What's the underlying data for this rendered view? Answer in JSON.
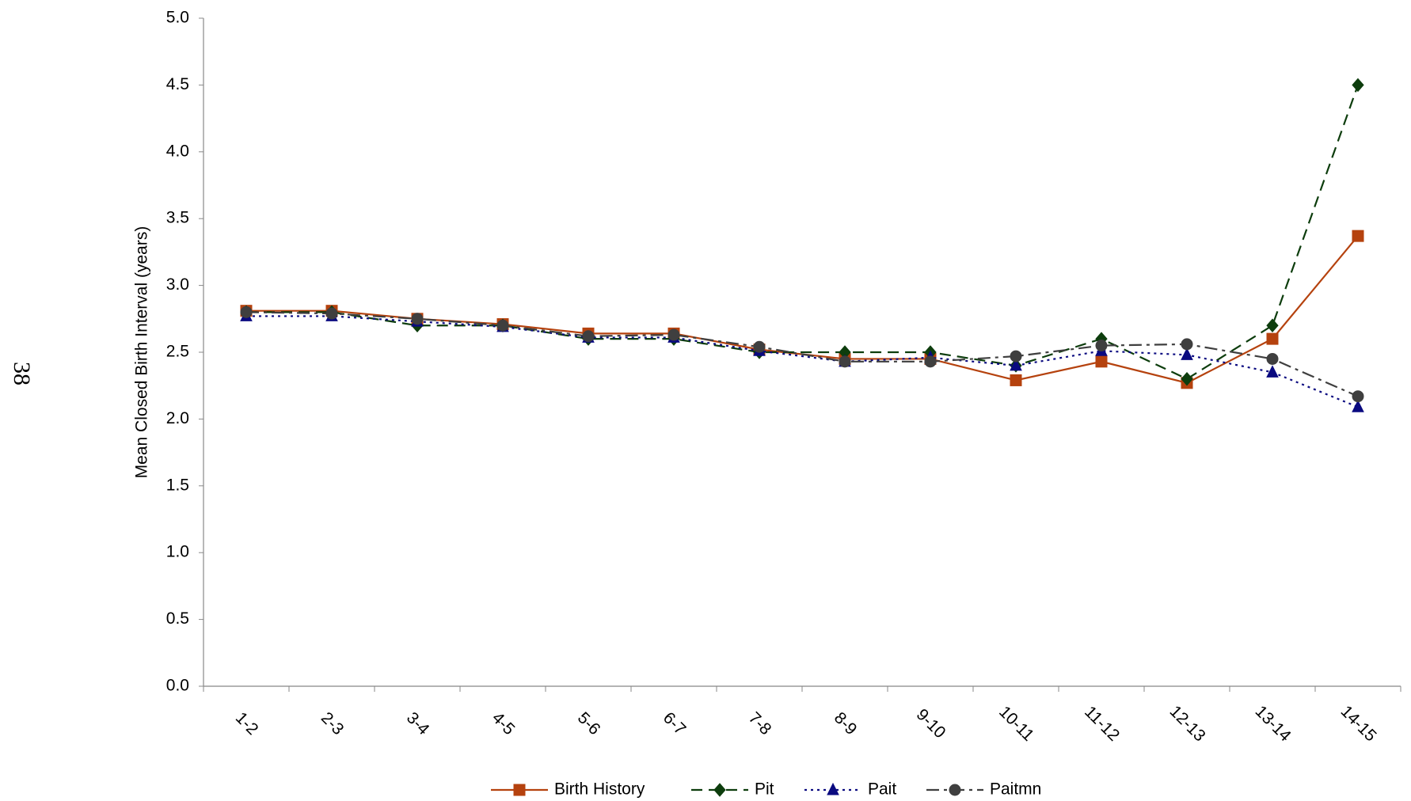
{
  "page_number": "38",
  "chart_data": {
    "type": "line",
    "y_label": "Mean Closed Birth Interval (years)",
    "categories": [
      "1-2",
      "2-3",
      "3-4",
      "4-5",
      "5-6",
      "6-7",
      "7-8",
      "8-9",
      "9-10",
      "10-11",
      "11-12",
      "12-13",
      "13-14",
      "14-15"
    ],
    "series": [
      {
        "name": "Birth History",
        "color": "#b5420e",
        "marker": "square",
        "line_style": "solid",
        "values": [
          2.81,
          2.81,
          2.75,
          2.71,
          2.64,
          2.64,
          2.52,
          2.45,
          2.45,
          2.29,
          2.43,
          2.27,
          2.6,
          3.37
        ]
      },
      {
        "name": "Pit",
        "color": "#0d3d0d",
        "marker": "diamond",
        "line_style": "dashed",
        "values": [
          2.8,
          2.8,
          2.7,
          2.7,
          2.6,
          2.6,
          2.5,
          2.5,
          2.5,
          2.4,
          2.6,
          2.3,
          2.7,
          4.5
        ]
      },
      {
        "name": "Pait",
        "color": "#0a0a80",
        "marker": "triangle",
        "line_style": "dotted",
        "values": [
          2.77,
          2.77,
          2.73,
          2.69,
          2.61,
          2.61,
          2.51,
          2.43,
          2.46,
          2.4,
          2.51,
          2.48,
          2.35,
          2.09
        ]
      },
      {
        "name": "Paitmn",
        "color": "#3f3f3f",
        "marker": "circle",
        "line_style": "dashdot",
        "values": [
          2.8,
          2.79,
          2.75,
          2.7,
          2.62,
          2.63,
          2.54,
          2.43,
          2.43,
          2.47,
          2.55,
          2.56,
          2.45,
          2.17
        ]
      }
    ],
    "ylim": [
      0,
      5
    ],
    "yticks": [
      {
        "value": 0,
        "label": "0.0"
      },
      0.5,
      {
        "value": 1,
        "label": "1.0"
      },
      1.5,
      {
        "value": 2,
        "label": "2.0"
      },
      2.5,
      {
        "value": 3,
        "label": "3.0"
      },
      3.5,
      {
        "value": 4,
        "label": "4.0"
      },
      4.5,
      {
        "value": 5,
        "label": "5.0"
      }
    ],
    "legend": "bottom"
  }
}
